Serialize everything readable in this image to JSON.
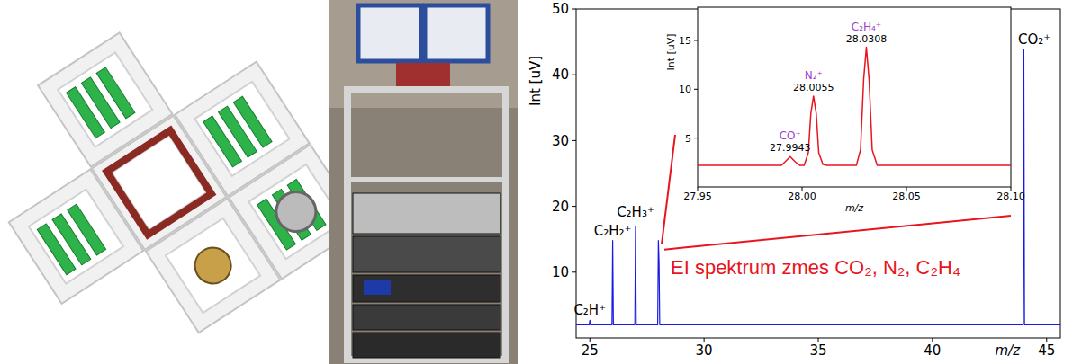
{
  "chart_data": [
    {
      "type": "line",
      "x_label": "m/z",
      "y_label": "Int [uV]",
      "xlim": [
        24.4,
        45.6
      ],
      "ylim": [
        0,
        50
      ],
      "xticks": [
        25,
        30,
        35,
        40,
        45
      ],
      "yticks": [
        10,
        20,
        30,
        40,
        50
      ],
      "x": [
        24.4,
        24.97,
        25,
        25.03,
        25.97,
        26,
        26.03,
        26.97,
        27,
        27.03,
        27.97,
        28,
        28.03,
        28.06,
        43.97,
        44,
        44.03,
        45.6
      ],
      "values": [
        2,
        2,
        2.7,
        2,
        2,
        14.8,
        2,
        2,
        17,
        2,
        2,
        14.8,
        11.5,
        2,
        2,
        43.8,
        2,
        2
      ],
      "color": "#1a1ae6",
      "peak_labels": [
        {
          "label": "C₂H⁺",
          "x": 25
        },
        {
          "label": "C₂H₂⁺",
          "x": 26
        },
        {
          "label": "C₂H₃⁺",
          "x": 27
        },
        {
          "label": "CO₂⁺",
          "x": 44
        }
      ],
      "annotations": [
        {
          "text": "EI spektrum zmes CO₂, N₂, C₂H₄",
          "color": "#e8141e"
        }
      ]
    },
    {
      "type": "line",
      "x_label": "m/z",
      "y_label": "Int [uV]",
      "xlim": [
        27.95,
        28.1
      ],
      "ylim": [
        0,
        18.4
      ],
      "xticks": [
        27.95,
        {
          "value": 28,
          "label": "28.00"
        },
        28.05,
        {
          "value": 28.1,
          "label": "28.10"
        }
      ],
      "yticks": [
        5,
        10,
        15
      ],
      "x": [
        27.95,
        27.99,
        27.992,
        27.9943,
        27.9966,
        27.999,
        28.001,
        28.003,
        28.0042,
        28.0055,
        28.0068,
        28.008,
        28.01,
        28.012,
        28.026,
        28.028,
        28.0295,
        28.0308,
        28.0321,
        28.0336,
        28.036,
        28.1
      ],
      "values": [
        2.2,
        2.2,
        2.6,
        3.1,
        2.6,
        2.2,
        2.2,
        3.5,
        7.5,
        9.3,
        7.5,
        3.5,
        2.3,
        2.2,
        2.2,
        3.8,
        11,
        14.3,
        11,
        3.8,
        2.2,
        2.2
      ],
      "color": "#e8141e",
      "data_labels": true,
      "peak_labels": [
        {
          "label": "CO⁺",
          "x": 27.9943,
          "color": "#a040d0"
        },
        {
          "label": "N₂⁺",
          "x": 28.0055,
          "color": "#a040d0"
        },
        {
          "label": "C₂H₄⁺",
          "x": 28.0308,
          "color": "#a040d0"
        }
      ]
    }
  ]
}
